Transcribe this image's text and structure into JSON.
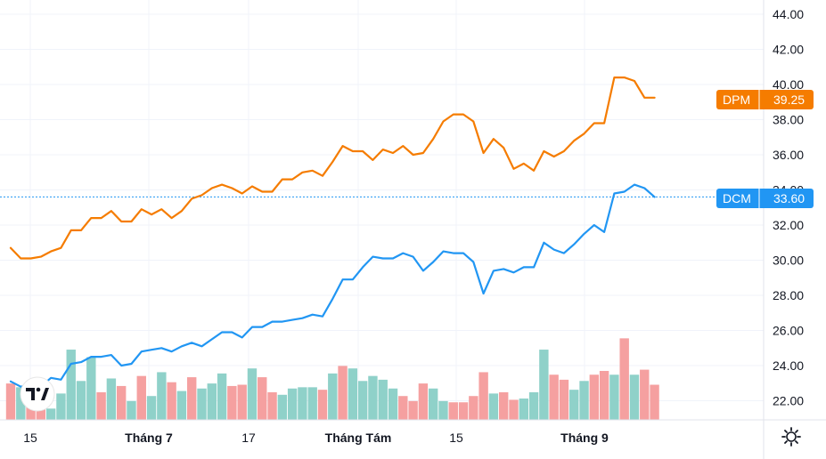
{
  "chart_data": {
    "type": "line",
    "x_tick_labels": [
      "15",
      "Tháng 7",
      "17",
      "Tháng Tám",
      "15",
      "Tháng 9"
    ],
    "x_tick_bold": [
      false,
      true,
      false,
      true,
      false,
      true
    ],
    "y_ticks": [
      "22.00",
      "24.00",
      "26.00",
      "28.00",
      "30.00",
      "32.00",
      "34.00",
      "36.00",
      "38.00",
      "40.00",
      "42.00",
      "44.00"
    ],
    "ylim": [
      21,
      44.3
    ],
    "grid": true,
    "series": [
      {
        "name": "DPM",
        "color": "#f57c00",
        "last_value": "39.25",
        "values": [
          30.7,
          30.1,
          30.1,
          30.2,
          30.5,
          30.7,
          31.7,
          31.7,
          32.4,
          32.4,
          32.8,
          32.2,
          32.2,
          32.9,
          32.6,
          32.9,
          32.4,
          32.8,
          33.5,
          33.7,
          34.1,
          34.3,
          34.1,
          33.8,
          34.2,
          33.9,
          33.9,
          34.6,
          34.6,
          35.0,
          35.1,
          34.8,
          35.6,
          36.5,
          36.2,
          36.2,
          35.7,
          36.3,
          36.1,
          36.5,
          36.0,
          36.1,
          36.9,
          37.9,
          38.3,
          38.3,
          37.9,
          36.1,
          36.9,
          36.4,
          35.2,
          35.5,
          35.1,
          36.2,
          35.9,
          36.2,
          36.8,
          37.2,
          37.8,
          37.8,
          40.4,
          40.4,
          40.2,
          39.25,
          39.25
        ]
      },
      {
        "name": "DCM",
        "color": "#2196f3",
        "last_value": "33.60",
        "values": [
          23.1,
          22.8,
          22.9,
          22.8,
          23.3,
          23.2,
          24.1,
          24.2,
          24.5,
          24.5,
          24.6,
          24.0,
          24.1,
          24.8,
          24.9,
          25.0,
          24.8,
          25.1,
          25.3,
          25.1,
          25.5,
          25.9,
          25.9,
          25.6,
          26.2,
          26.2,
          26.5,
          26.5,
          26.6,
          26.7,
          26.9,
          26.8,
          27.8,
          28.9,
          28.9,
          29.6,
          30.2,
          30.1,
          30.1,
          30.4,
          30.2,
          29.4,
          29.9,
          30.5,
          30.4,
          30.4,
          29.9,
          28.1,
          29.4,
          29.5,
          29.3,
          29.6,
          29.6,
          31.0,
          30.6,
          30.4,
          30.9,
          31.5,
          32.0,
          31.6,
          33.8,
          33.9,
          34.3,
          34.1,
          33.6
        ]
      }
    ],
    "volume": {
      "heights": [
        2.9,
        2.6,
        3.1,
        2.2,
        0.9,
        2.1,
        5.6,
        3.1,
        5.0,
        2.2,
        3.3,
        2.7,
        1.5,
        3.5,
        1.9,
        3.8,
        3.0,
        2.3,
        3.4,
        2.5,
        2.9,
        3.7,
        2.7,
        2.8,
        4.1,
        3.4,
        2.2,
        2.0,
        2.5,
        2.6,
        2.6,
        2.4,
        3.7,
        4.3,
        4.1,
        3.1,
        3.5,
        3.2,
        2.5,
        1.9,
        1.5,
        2.9,
        2.5,
        1.5,
        1.4,
        1.4,
        1.9,
        3.8,
        2.1,
        2.2,
        1.6,
        1.7,
        2.2,
        5.6,
        3.6,
        3.2,
        2.4,
        3.1,
        3.6,
        3.9,
        3.6,
        6.5,
        3.6,
        4.0,
        2.8
      ],
      "up": [
        false,
        true,
        false,
        false,
        true,
        true,
        true,
        true,
        true,
        false,
        true,
        false,
        true,
        false,
        true,
        true,
        false,
        true,
        false,
        true,
        true,
        true,
        false,
        false,
        true,
        false,
        false,
        true,
        true,
        true,
        true,
        false,
        true,
        false,
        true,
        true,
        true,
        true,
        true,
        false,
        false,
        false,
        true,
        true,
        false,
        false,
        false,
        false,
        true,
        false,
        false,
        true,
        true,
        true,
        false,
        false,
        true,
        true,
        false,
        false,
        true,
        false,
        true,
        false,
        false
      ],
      "up_color": "#8fd1c9",
      "down_color": "#f5a0a0"
    },
    "price_line_color": "#2196f3",
    "labels": {
      "dpm": "DPM",
      "dcm": "DCM"
    }
  },
  "icons": {
    "logo": "tradingview-logo",
    "settings": "gear-icon"
  }
}
